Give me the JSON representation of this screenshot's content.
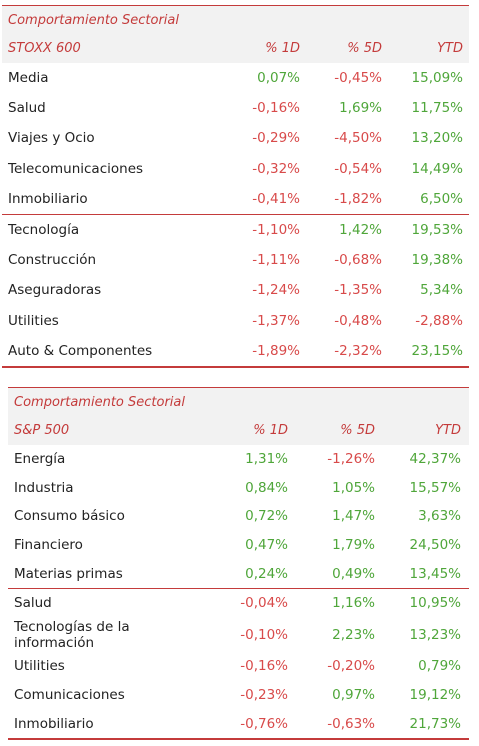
{
  "tables": [
    {
      "title": "Comportamiento Sectorial",
      "index": "STOXX 600",
      "col_d1": "% 1D",
      "col_d5": "% 5D",
      "col_ytd": "YTD",
      "rows": [
        {
          "name": "Media",
          "d1": "0,07%",
          "d5": "-0,45%",
          "ytd": "15,09%"
        },
        {
          "name": "Salud",
          "d1": "-0,16%",
          "d5": "1,69%",
          "ytd": "11,75%"
        },
        {
          "name": "Viajes y Ocio",
          "d1": "-0,29%",
          "d5": "-4,50%",
          "ytd": "13,20%"
        },
        {
          "name": "Telecomunicaciones",
          "d1": "-0,32%",
          "d5": "-0,54%",
          "ytd": "14,49%"
        },
        {
          "name": "Inmobiliario",
          "d1": "-0,41%",
          "d5": "-1,82%",
          "ytd": "6,50%"
        },
        {
          "name": "Tecnología",
          "d1": "-1,10%",
          "d5": "1,42%",
          "ytd": "19,53%"
        },
        {
          "name": "Construcción",
          "d1": "-1,11%",
          "d5": "-0,68%",
          "ytd": "19,38%"
        },
        {
          "name": "Aseguradoras",
          "d1": "-1,24%",
          "d5": "-1,35%",
          "ytd": "5,34%"
        },
        {
          "name": "Utilities",
          "d1": "-1,37%",
          "d5": "-0,48%",
          "ytd": "-2,88%"
        },
        {
          "name": "Auto & Componentes",
          "d1": "-1,89%",
          "d5": "-2,32%",
          "ytd": "23,15%"
        }
      ]
    },
    {
      "title": "Comportamiento Sectorial",
      "index": "S&P 500",
      "col_d1": "% 1D",
      "col_d5": "% 5D",
      "col_ytd": "YTD",
      "rows": [
        {
          "name": "Energía",
          "d1": "1,31%",
          "d5": "-1,26%",
          "ytd": "42,37%"
        },
        {
          "name": "Industria",
          "d1": "0,84%",
          "d5": "1,05%",
          "ytd": "15,57%"
        },
        {
          "name": "Consumo básico",
          "d1": "0,72%",
          "d5": "1,47%",
          "ytd": "3,63%"
        },
        {
          "name": "Financiero",
          "d1": "0,47%",
          "d5": "1,79%",
          "ytd": "24,50%"
        },
        {
          "name": "Materias primas",
          "d1": "0,24%",
          "d5": "0,49%",
          "ytd": "13,45%"
        },
        {
          "name": "Salud",
          "d1": "-0,04%",
          "d5": "1,16%",
          "ytd": "10,95%"
        },
        {
          "name": "Tecnologías de la información",
          "d1": "-0,10%",
          "d5": "2,23%",
          "ytd": "13,23%"
        },
        {
          "name": "Utilities",
          "d1": "-0,16%",
          "d5": "-0,20%",
          "ytd": "0,79%"
        },
        {
          "name": "Comunicaciones",
          "d1": "-0,23%",
          "d5": "0,97%",
          "ytd": "19,12%"
        },
        {
          "name": "Inmobiliario",
          "d1": "-0,76%",
          "d5": "-0,63%",
          "ytd": "21,73%"
        }
      ]
    }
  ],
  "colors": {
    "accent": "#c43b3b",
    "positive": "#4fa63a",
    "negative": "#d84a4a",
    "header_bg": "#f2f2f2"
  }
}
